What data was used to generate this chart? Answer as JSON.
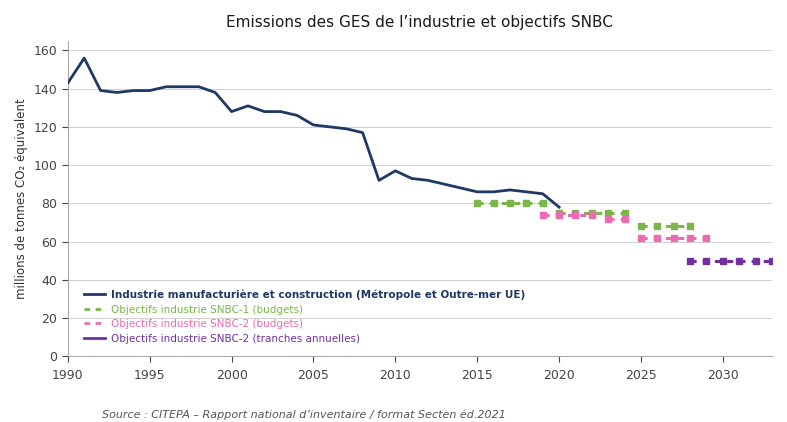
{
  "title": "Emissions des GES de l’industrie et objectifs SNBC",
  "source": "Source : CITEPA – Rapport national d’inventaire / format Secten éd.2021",
  "ylabel": "millions de tonnes CO₂ équivalent",
  "background_color": "#ffffff",
  "xlim": [
    1990,
    2033
  ],
  "ylim": [
    0,
    165
  ],
  "yticks": [
    0,
    20,
    40,
    60,
    80,
    100,
    120,
    140,
    160
  ],
  "xticks": [
    1990,
    1995,
    2000,
    2005,
    2010,
    2015,
    2020,
    2025,
    2030
  ],
  "industrie_x": [
    1990,
    1991,
    1992,
    1993,
    1994,
    1995,
    1996,
    1997,
    1998,
    1999,
    2000,
    2001,
    2002,
    2003,
    2004,
    2005,
    2006,
    2007,
    2008,
    2009,
    2010,
    2011,
    2012,
    2013,
    2014,
    2015,
    2016,
    2017,
    2018,
    2019,
    2020
  ],
  "industrie_y": [
    143,
    156,
    139,
    138,
    139,
    139,
    141,
    141,
    141,
    138,
    128,
    131,
    128,
    128,
    126,
    121,
    120,
    119,
    117,
    92,
    97,
    93,
    92,
    90,
    88,
    86,
    86,
    87,
    86,
    85,
    78
  ],
  "industrie_color": "#1f3864",
  "industrie_label": "Industrie manufacturière et construction (Métropole et Outre-mer UE)",
  "snbc1_x": [
    2015,
    2016,
    2017,
    2018,
    2019,
    2020,
    2021,
    2022,
    2023,
    2024,
    2025,
    2026,
    2027,
    2028
  ],
  "snbc1_y": [
    80,
    80,
    80,
    80,
    80,
    75,
    75,
    75,
    75,
    75,
    68,
    68,
    68,
    68
  ],
  "snbc1_color": "#7ab648",
  "snbc1_label": "Objectifs industrie SNBC-1 (budgets)",
  "snbc2b_x": [
    2019,
    2020,
    2021,
    2022,
    2023,
    2024,
    2025,
    2026,
    2027,
    2028,
    2029
  ],
  "snbc2b_y": [
    74,
    74,
    74,
    74,
    72,
    72,
    62,
    62,
    62,
    62,
    62
  ],
  "snbc2b_color": "#e96db0",
  "snbc2b_label": "Objectifs industrie SNBC-2 (budgets)",
  "snbc2t_x": [
    2028,
    2029,
    2030,
    2031,
    2032,
    2033
  ],
  "snbc2t_y": [
    50,
    50,
    50,
    50,
    50,
    50
  ],
  "snbc2t_color": "#7030a0",
  "snbc2t_label": "Objectifs industrie SNBC-2 (tranches annuelles)"
}
